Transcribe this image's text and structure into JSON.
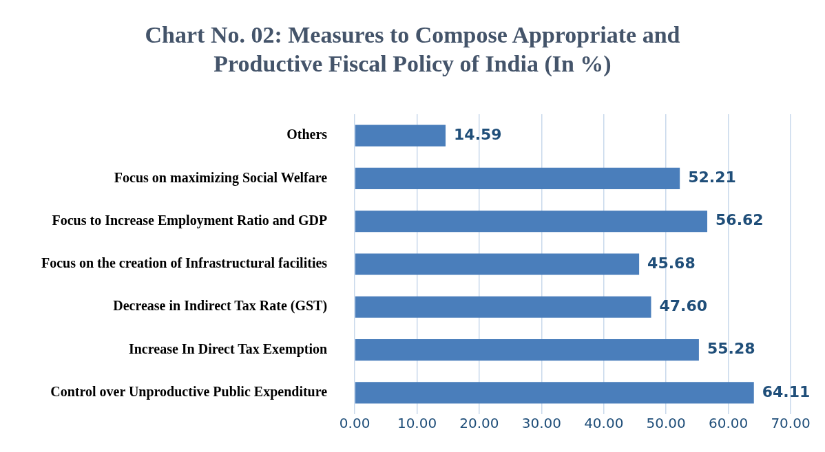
{
  "chart_data": {
    "type": "bar",
    "orientation": "horizontal",
    "title": "Chart No. 02: Measures to Compose Appropriate and Productive Fiscal Policy of India (In %)",
    "categories": [
      "Others",
      "Focus on maximizing Social Welfare",
      "Focus to Increase Employment Ratio and GDP",
      "Focus on the creation of Infrastructural facilities",
      "Decrease in Indirect Tax Rate (GST)",
      "Increase In Direct Tax Exemption",
      "Control over Unproductive Public Expenditure"
    ],
    "values": [
      14.59,
      52.21,
      56.62,
      45.68,
      47.6,
      55.28,
      64.11
    ],
    "value_labels": [
      "14.59",
      "52.21",
      "56.62",
      "45.68",
      "47.60",
      "55.28",
      "64.11"
    ],
    "color": "#4a7ebb",
    "xlim": [
      0,
      70
    ],
    "xticks": [
      {
        "value": 0,
        "label": "0.00"
      },
      {
        "value": 10,
        "label": "10.00"
      },
      {
        "value": 20,
        "label": "20.00"
      },
      {
        "value": 30,
        "label": "30.00"
      },
      {
        "value": 40,
        "label": "40.00"
      },
      {
        "value": 50,
        "label": "50.00"
      },
      {
        "value": 60,
        "label": "60.00"
      },
      {
        "value": 70,
        "label": "70.00"
      }
    ],
    "grid": "x"
  }
}
